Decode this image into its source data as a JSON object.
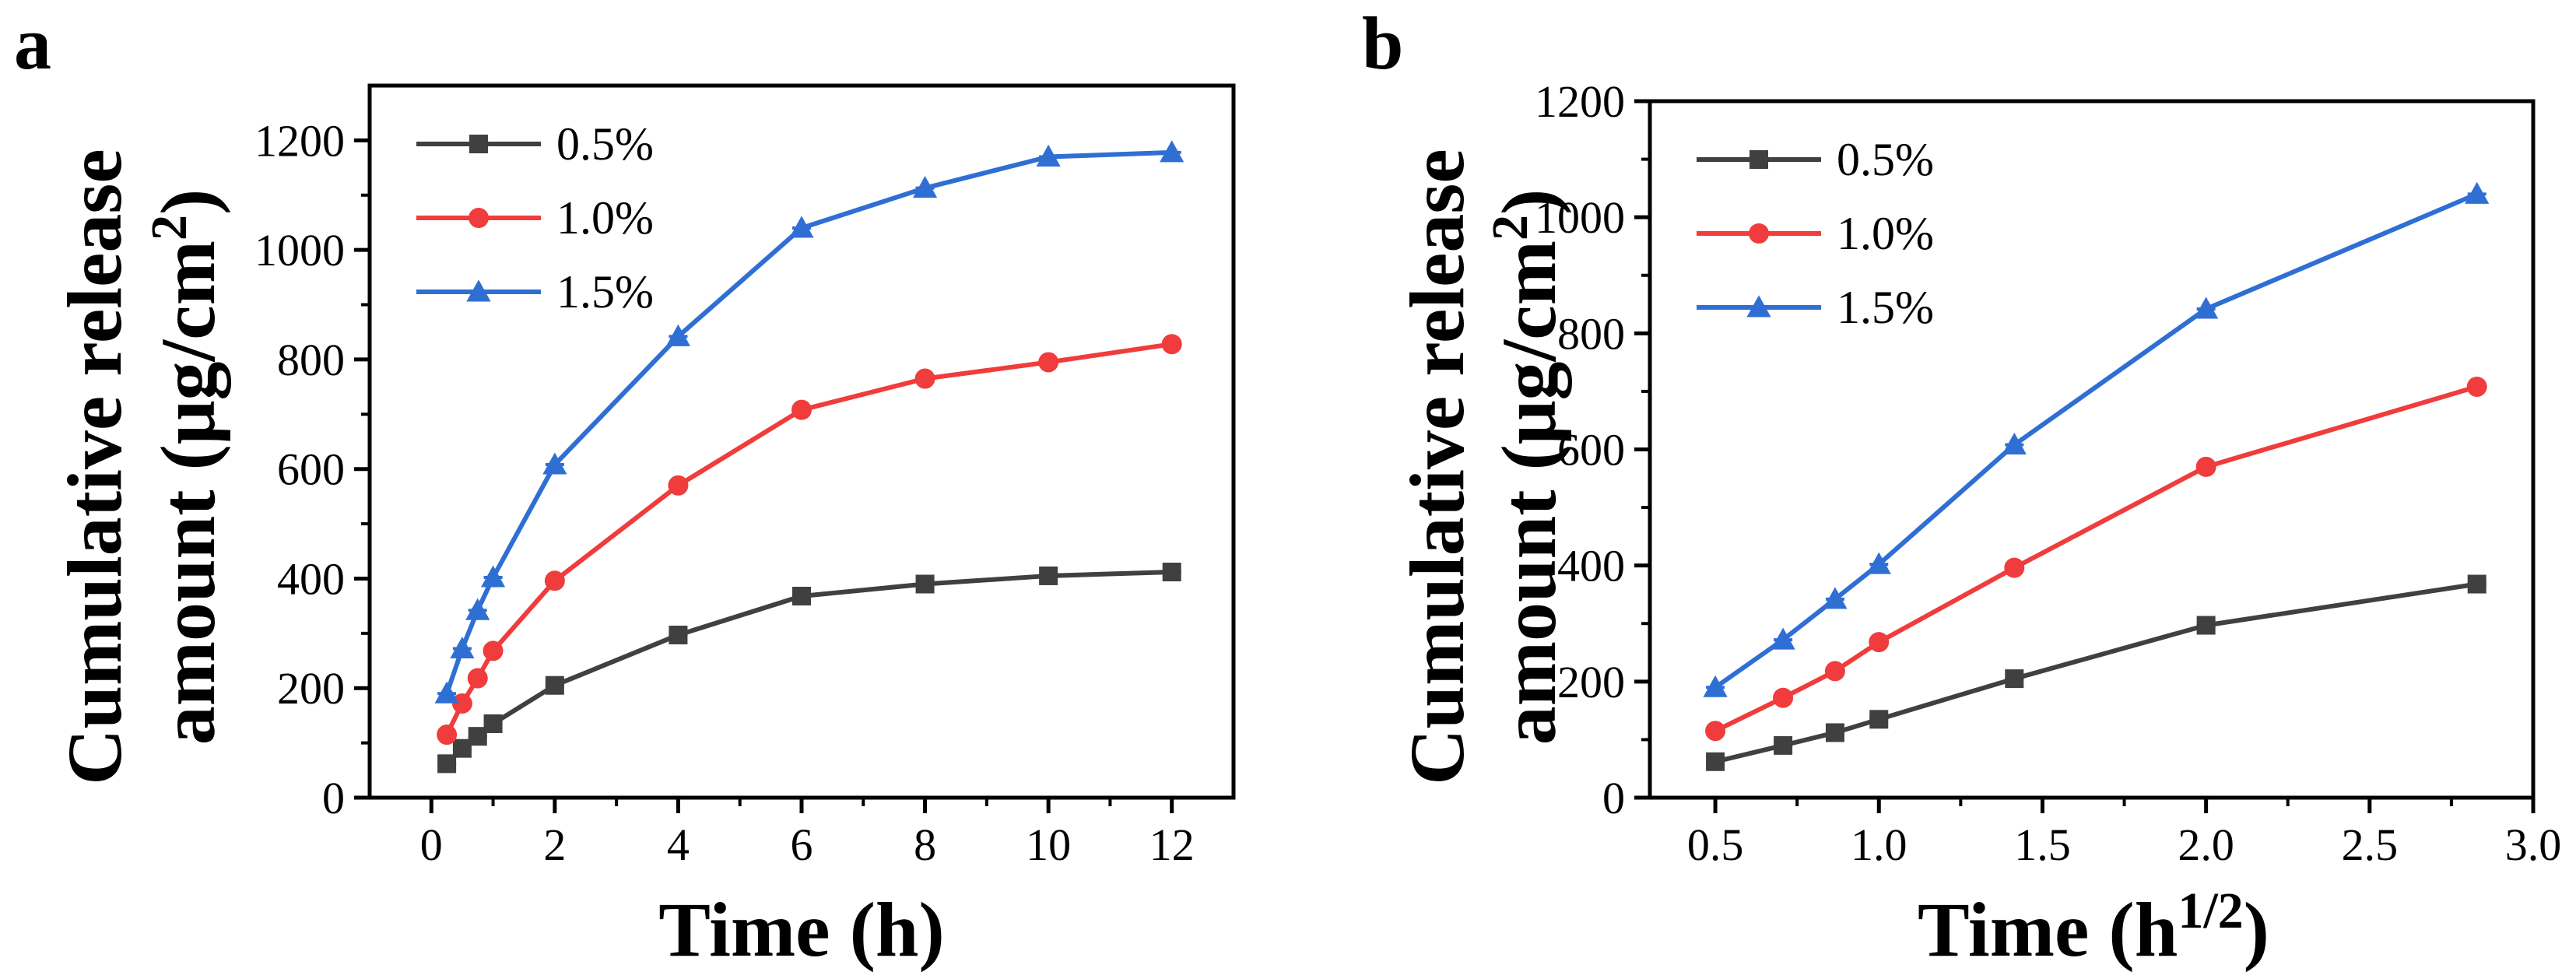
{
  "chart_data": [
    {
      "type": "line",
      "panel_label": "a",
      "xlabel": "Time (h)",
      "ylabel_line1": "Cumulative release",
      "ylabel_line2_prefix": "amount (μg/cm",
      "ylabel_line2_sup": "2",
      "ylabel_line2_suffix": ")",
      "xlim": [
        -1,
        13
      ],
      "ylim": [
        0,
        1300
      ],
      "xticks": [
        0,
        2,
        4,
        6,
        8,
        10,
        12
      ],
      "xtick_labels": [
        "0",
        "2",
        "4",
        "6",
        "8",
        "10",
        "12"
      ],
      "yticks": [
        0,
        200,
        400,
        600,
        800,
        1000,
        1200
      ],
      "ytick_labels": [
        "0",
        "200",
        "400",
        "600",
        "800",
        "1000",
        "1200"
      ],
      "x": [
        0.25,
        0.5,
        0.75,
        1,
        2,
        4,
        6,
        8,
        10,
        12
      ],
      "legend_position": "top-left",
      "series": [
        {
          "name": "0.5%",
          "color": "#404040",
          "marker": "square",
          "values": [
            62,
            90,
            112,
            135,
            205,
            297,
            368,
            390,
            405,
            412
          ]
        },
        {
          "name": "1.0%",
          "color": "#f03c3c",
          "marker": "circle",
          "values": [
            115,
            172,
            218,
            268,
            396,
            570,
            708,
            765,
            795,
            828
          ]
        },
        {
          "name": "1.5%",
          "color": "#2f6fd4",
          "marker": "triangle",
          "values": [
            190,
            272,
            342,
            402,
            608,
            842,
            1040,
            1113,
            1170,
            1178
          ]
        }
      ]
    },
    {
      "type": "line",
      "panel_label": "b",
      "xlabel_prefix": "Time (h",
      "xlabel_sup": "1/2",
      "xlabel_suffix": ")",
      "ylabel_line1": "Cumulative release",
      "ylabel_line2_prefix": "amount (μg/cm",
      "ylabel_line2_sup": "2",
      "ylabel_line2_suffix": ")",
      "xlim": [
        0.3,
        3.0
      ],
      "ylim": [
        0,
        1200
      ],
      "xticks": [
        0.5,
        1.0,
        1.5,
        2.0,
        2.5,
        3.0
      ],
      "xtick_labels": [
        "0.5",
        "1.0",
        "1.5",
        "2.0",
        "2.5",
        "3.0"
      ],
      "yticks": [
        0,
        200,
        400,
        600,
        800,
        1000,
        1200
      ],
      "ytick_labels": [
        "0",
        "200",
        "400",
        "600",
        "800",
        "1000",
        "1200"
      ],
      "x": [
        0.5,
        0.707,
        0.866,
        1.0,
        1.414,
        2.0,
        2.828
      ],
      "legend_position": "top-left",
      "series": [
        {
          "name": "0.5%",
          "color": "#404040",
          "marker": "square",
          "values": [
            62,
            90,
            112,
            135,
            205,
            297,
            368
          ]
        },
        {
          "name": "1.0%",
          "color": "#f03c3c",
          "marker": "circle",
          "values": [
            115,
            172,
            218,
            268,
            396,
            570,
            708
          ]
        },
        {
          "name": "1.5%",
          "color": "#2f6fd4",
          "marker": "triangle",
          "values": [
            190,
            272,
            342,
            402,
            608,
            842,
            1040
          ]
        }
      ]
    }
  ]
}
